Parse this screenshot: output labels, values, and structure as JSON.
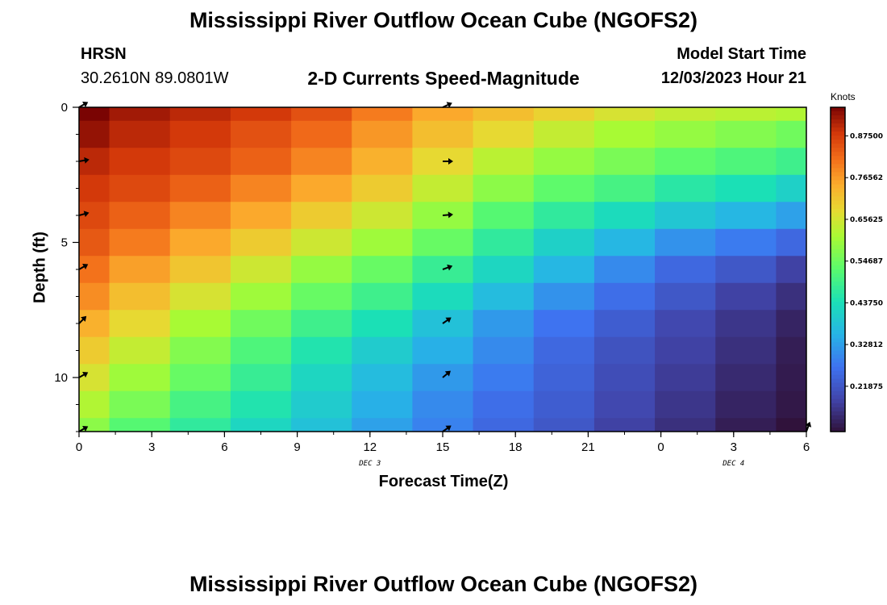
{
  "header": {
    "title": "Mississippi River Outflow Ocean Cube (NGOFS2)",
    "station": "HRSN",
    "coords": "30.2610N  89.0801W",
    "subtitle": "2-D Currents Speed-Magnitude",
    "model_start_label": "Model Start Time",
    "model_start_value": "12/03/2023 Hour 21"
  },
  "footer": {
    "title_repeat": "Mississippi River Outflow Ocean Cube (NGOFS2)"
  },
  "chart_data": {
    "type": "heatmap",
    "title": "2-D Currents Speed-Magnitude",
    "xlabel": "Forecast Time(Z)",
    "ylabel": "Depth (ft)",
    "x_tick_labels": [
      "0",
      "3",
      "6",
      "9",
      "12",
      "15",
      "18",
      "21",
      "0",
      "3",
      "6"
    ],
    "x_range": [
      0,
      30
    ],
    "date_labels": [
      {
        "label": "DEC 3",
        "at_hour": 12
      },
      {
        "label": "DEC 4",
        "at_hour": 27
      }
    ],
    "y_ticks": [
      0,
      5,
      10
    ],
    "y_range": [
      0,
      12
    ],
    "y_inverted": true,
    "colorbar": {
      "label": "Knots",
      "tick_labels": [
        "0.87500",
        "0.76562",
        "0.65625",
        "0.54687",
        "0.43750",
        "0.32812",
        "0.21875"
      ],
      "tick_values": [
        0.875,
        0.76562,
        0.65625,
        0.54687,
        0.4375,
        0.32812,
        0.21875
      ],
      "range": [
        0.1,
        0.95
      ],
      "colormap": "turbo"
    },
    "x_columns": [
      0,
      2.5,
      5,
      7.5,
      10,
      12.5,
      15,
      17.5,
      20,
      22.5,
      25,
      27.5,
      30
    ],
    "y_rows": [
      0,
      1,
      2,
      3,
      4,
      5,
      6,
      7,
      8,
      9,
      10,
      11,
      12
    ],
    "values": [
      [
        0.95,
        0.92,
        0.9,
        0.88,
        0.85,
        0.8,
        0.75,
        0.72,
        0.69,
        0.66,
        0.64,
        0.63,
        0.62
      ],
      [
        0.93,
        0.9,
        0.88,
        0.85,
        0.82,
        0.77,
        0.72,
        0.68,
        0.64,
        0.61,
        0.59,
        0.57,
        0.55
      ],
      [
        0.9,
        0.88,
        0.86,
        0.83,
        0.79,
        0.74,
        0.68,
        0.63,
        0.59,
        0.56,
        0.53,
        0.51,
        0.49
      ],
      [
        0.88,
        0.86,
        0.83,
        0.79,
        0.75,
        0.7,
        0.64,
        0.58,
        0.53,
        0.5,
        0.46,
        0.44,
        0.41
      ],
      [
        0.86,
        0.83,
        0.79,
        0.75,
        0.7,
        0.65,
        0.59,
        0.52,
        0.47,
        0.43,
        0.39,
        0.36,
        0.33
      ],
      [
        0.84,
        0.8,
        0.75,
        0.7,
        0.65,
        0.6,
        0.54,
        0.47,
        0.41,
        0.36,
        0.31,
        0.28,
        0.25
      ],
      [
        0.81,
        0.76,
        0.71,
        0.65,
        0.59,
        0.54,
        0.48,
        0.42,
        0.36,
        0.3,
        0.25,
        0.22,
        0.18
      ],
      [
        0.78,
        0.72,
        0.66,
        0.6,
        0.54,
        0.49,
        0.43,
        0.37,
        0.31,
        0.26,
        0.22,
        0.18,
        0.15
      ],
      [
        0.74,
        0.68,
        0.61,
        0.55,
        0.49,
        0.44,
        0.38,
        0.32,
        0.27,
        0.23,
        0.19,
        0.16,
        0.13
      ],
      [
        0.7,
        0.64,
        0.57,
        0.51,
        0.45,
        0.4,
        0.35,
        0.3,
        0.25,
        0.21,
        0.18,
        0.15,
        0.12
      ],
      [
        0.66,
        0.6,
        0.54,
        0.48,
        0.42,
        0.37,
        0.32,
        0.28,
        0.24,
        0.2,
        0.17,
        0.14,
        0.115
      ],
      [
        0.62,
        0.56,
        0.5,
        0.45,
        0.4,
        0.35,
        0.3,
        0.26,
        0.23,
        0.19,
        0.16,
        0.13,
        0.11
      ],
      [
        0.58,
        0.52,
        0.47,
        0.42,
        0.38,
        0.33,
        0.29,
        0.25,
        0.22,
        0.18,
        0.15,
        0.12,
        0.1
      ]
    ],
    "vectors": [
      {
        "hour": 0,
        "depth": 0,
        "dir": 60
      },
      {
        "hour": 0,
        "depth": 2,
        "dir": 80
      },
      {
        "hour": 0,
        "depth": 4,
        "dir": 75
      },
      {
        "hour": 0,
        "depth": 6,
        "dir": 60
      },
      {
        "hour": 0,
        "depth": 8,
        "dir": 45
      },
      {
        "hour": 0,
        "depth": 10,
        "dir": 60
      },
      {
        "hour": 0,
        "depth": 12,
        "dir": 60
      },
      {
        "hour": 15,
        "depth": 0,
        "dir": 65
      },
      {
        "hour": 15,
        "depth": 2,
        "dir": 90
      },
      {
        "hour": 15,
        "depth": 4,
        "dir": 85
      },
      {
        "hour": 15,
        "depth": 6,
        "dir": 70
      },
      {
        "hour": 15,
        "depth": 8,
        "dir": 55
      },
      {
        "hour": 15,
        "depth": 10,
        "dir": 50
      },
      {
        "hour": 15,
        "depth": 12,
        "dir": 55
      },
      {
        "hour": 30,
        "depth": 12,
        "dir": 20
      }
    ]
  }
}
